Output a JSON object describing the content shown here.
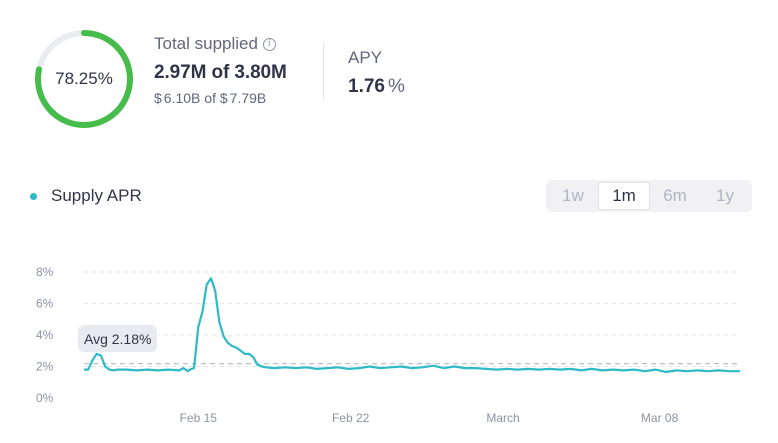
{
  "supply": {
    "utilization_label": "78.25%",
    "utilization": 0.7825,
    "title": "Total supplied",
    "info_icon": "info-icon",
    "amount": "2.97M",
    "of_word": "of",
    "cap": "3.80M",
    "usd_prefix": "$",
    "usd_amount": "6.10B",
    "usd_of": "of",
    "usd_cap_prefix": "$",
    "usd_cap": "7.79B",
    "ring_color": "#46bc4b",
    "ring_track_color": "#eaebef"
  },
  "apy": {
    "title": "APY",
    "value": "1.76",
    "unit": "%"
  },
  "legend": {
    "label": "Supply APR",
    "color": "#2ebac6"
  },
  "range_tabs": [
    {
      "label": "1w",
      "active": false
    },
    {
      "label": "1m",
      "active": true
    },
    {
      "label": "6m",
      "active": false
    },
    {
      "label": "1y",
      "active": false
    }
  ],
  "avg": {
    "label": "Avg 2.18%",
    "value": 2.18
  },
  "chart_data": {
    "type": "line",
    "title": "",
    "xlabel": "",
    "ylabel": "",
    "ylim": [
      0,
      8
    ],
    "y_ticks": [
      "8%",
      "6%",
      "4%",
      "2%",
      "0%"
    ],
    "y_tick_values": [
      8,
      6,
      4,
      2,
      0
    ],
    "x_ticks": [
      "Feb 15",
      "Feb 22",
      "March",
      "Mar 08"
    ],
    "x_tick_values": [
      5.4,
      12.6,
      19.8,
      27.2
    ],
    "xlim": [
      0,
      31
    ],
    "grid": true,
    "series": [
      {
        "name": "Supply APR",
        "color": "#2ebac6",
        "x": [
          0,
          0.2,
          0.4,
          0.6,
          0.8,
          1.0,
          1.2,
          1.4,
          1.6,
          2.0,
          2.5,
          3.0,
          3.5,
          4.0,
          4.5,
          4.7,
          4.9,
          5.0,
          5.2,
          5.4,
          5.6,
          5.8,
          6.0,
          6.2,
          6.4,
          6.6,
          6.8,
          7.0,
          7.2,
          7.4,
          7.6,
          7.8,
          8.0,
          8.2,
          8.4,
          8.6,
          9.0,
          9.5,
          10,
          10.5,
          11,
          11.5,
          12,
          12.5,
          13,
          13.5,
          14,
          14.5,
          15,
          15.5,
          16,
          16.5,
          17,
          17.5,
          18,
          18.5,
          19,
          19.5,
          20,
          20.5,
          21,
          21.5,
          22,
          22.5,
          23,
          23.5,
          24,
          24.5,
          25,
          25.5,
          26,
          26.5,
          27,
          27.5,
          28,
          28.5,
          29,
          29.5,
          30,
          30.5,
          31
        ],
        "y": [
          1.8,
          1.8,
          2.4,
          2.8,
          2.7,
          2.0,
          1.8,
          1.75,
          1.8,
          1.8,
          1.75,
          1.8,
          1.75,
          1.8,
          1.75,
          1.9,
          1.7,
          1.8,
          1.9,
          4.5,
          5.5,
          7.2,
          7.6,
          6.8,
          4.8,
          3.9,
          3.5,
          3.3,
          3.2,
          3.0,
          2.8,
          2.8,
          2.6,
          2.1,
          2.0,
          1.95,
          1.9,
          1.95,
          1.9,
          1.95,
          1.85,
          1.9,
          1.95,
          1.85,
          1.9,
          2.0,
          1.9,
          1.95,
          2.0,
          1.9,
          1.95,
          2.05,
          1.9,
          2.0,
          1.9,
          1.9,
          1.85,
          1.8,
          1.85,
          1.8,
          1.85,
          1.8,
          1.85,
          1.8,
          1.85,
          1.75,
          1.85,
          1.75,
          1.8,
          1.75,
          1.8,
          1.7,
          1.8,
          1.65,
          1.75,
          1.7,
          1.75,
          1.7,
          1.75,
          1.7,
          1.7
        ]
      }
    ],
    "average_line": 2.18
  }
}
